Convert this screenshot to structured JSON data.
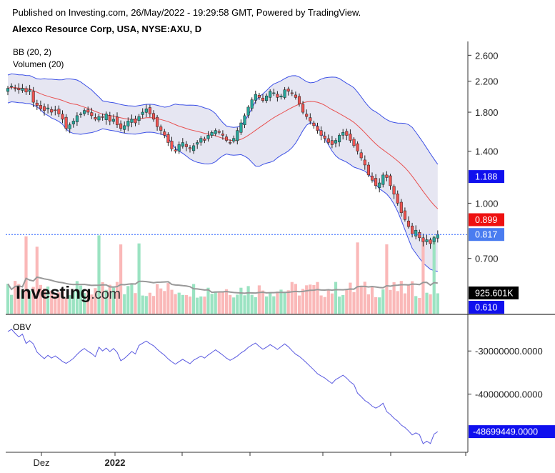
{
  "header": {
    "published": "Published on Investing.com, 26/May/2022 - 19:29:58 GMT, Powered by TradingView.",
    "symbol": "Alexco Resource Corp, USA, NYSE:AXU, D"
  },
  "indicators": {
    "bb": "BB (20, 2)",
    "volume": "Volumen (20)",
    "obv": "OBV"
  },
  "watermark": {
    "brand": "Investing",
    "suffix": ".com"
  },
  "colors": {
    "up": "#26a69a",
    "down": "#ef5350",
    "band_fill": "#e6e6f2",
    "band_line": "#3c50e6",
    "basis": "#e85050",
    "vol_up": "#9be3c2",
    "vol_down": "#fab8b8",
    "vol_ma": "#999999",
    "obv_line": "#5a5ae0",
    "price_line": "#2962ff"
  },
  "chart_data": [
    {
      "type": "candlestick",
      "title": "",
      "y_scale": "log",
      "yticks": [
        "2.600",
        "2.200",
        "1.800",
        "1.400",
        "1.000",
        "0.700"
      ],
      "ytick_values": [
        2.6,
        2.2,
        1.8,
        1.4,
        1.0,
        0.7
      ],
      "xticks": [
        "Dez",
        "2022"
      ],
      "badges": [
        {
          "label": "1.188",
          "value": 1.188,
          "color": "#1010ee"
        },
        {
          "label": "0.899",
          "value": 0.899,
          "color": "#ee1010"
        },
        {
          "label": "0.817",
          "value": 0.817,
          "color": "#4a7cf0"
        },
        {
          "label": "925.601K",
          "value": "volume_ma",
          "color": "#000000"
        },
        {
          "label": "0.610",
          "value": 0.61,
          "color": "#1010ee"
        }
      ],
      "last_price": 0.817,
      "closes": [
        2.1,
        2.13,
        2.1,
        2.08,
        2.1,
        2.05,
        2.08,
        1.92,
        1.88,
        1.84,
        1.82,
        1.85,
        1.8,
        1.82,
        1.78,
        1.72,
        1.62,
        1.66,
        1.7,
        1.76,
        1.78,
        1.82,
        1.8,
        1.76,
        1.72,
        1.75,
        1.74,
        1.78,
        1.7,
        1.72,
        1.66,
        1.62,
        1.65,
        1.7,
        1.72,
        1.68,
        1.75,
        1.8,
        1.84,
        1.78,
        1.72,
        1.64,
        1.6,
        1.55,
        1.48,
        1.42,
        1.4,
        1.46,
        1.48,
        1.44,
        1.42,
        1.45,
        1.48,
        1.52,
        1.5,
        1.55,
        1.58,
        1.6,
        1.58,
        1.55,
        1.5,
        1.48,
        1.52,
        1.6,
        1.68,
        1.76,
        1.86,
        1.95,
        2.02,
        1.98,
        1.94,
        2.0,
        2.06,
        2.04,
        1.98,
        2.0,
        2.08,
        2.06,
        2.04,
        1.98,
        1.9,
        1.8,
        1.75,
        1.7,
        1.65,
        1.6,
        1.55,
        1.52,
        1.48,
        1.46,
        1.5,
        1.55,
        1.58,
        1.55,
        1.5,
        1.45,
        1.4,
        1.34,
        1.28,
        1.2,
        1.16,
        1.12,
        1.14,
        1.2,
        1.18,
        1.12,
        1.06,
        1.0,
        0.94,
        0.9,
        0.86,
        0.82,
        0.84,
        0.8,
        0.78,
        0.79,
        0.77,
        0.8,
        0.817
      ],
      "volume_ma_label": "925.601K"
    },
    {
      "type": "line",
      "title": "",
      "series_label": "OBV",
      "yticks": [
        "-30000000.0000",
        "-40000000.0000"
      ],
      "ytick_values": [
        -30000000,
        -40000000
      ],
      "last_value_label": "-48699449.0000",
      "last_value": -48699449,
      "ylim": [
        -51500000,
        -23000000
      ]
    }
  ]
}
